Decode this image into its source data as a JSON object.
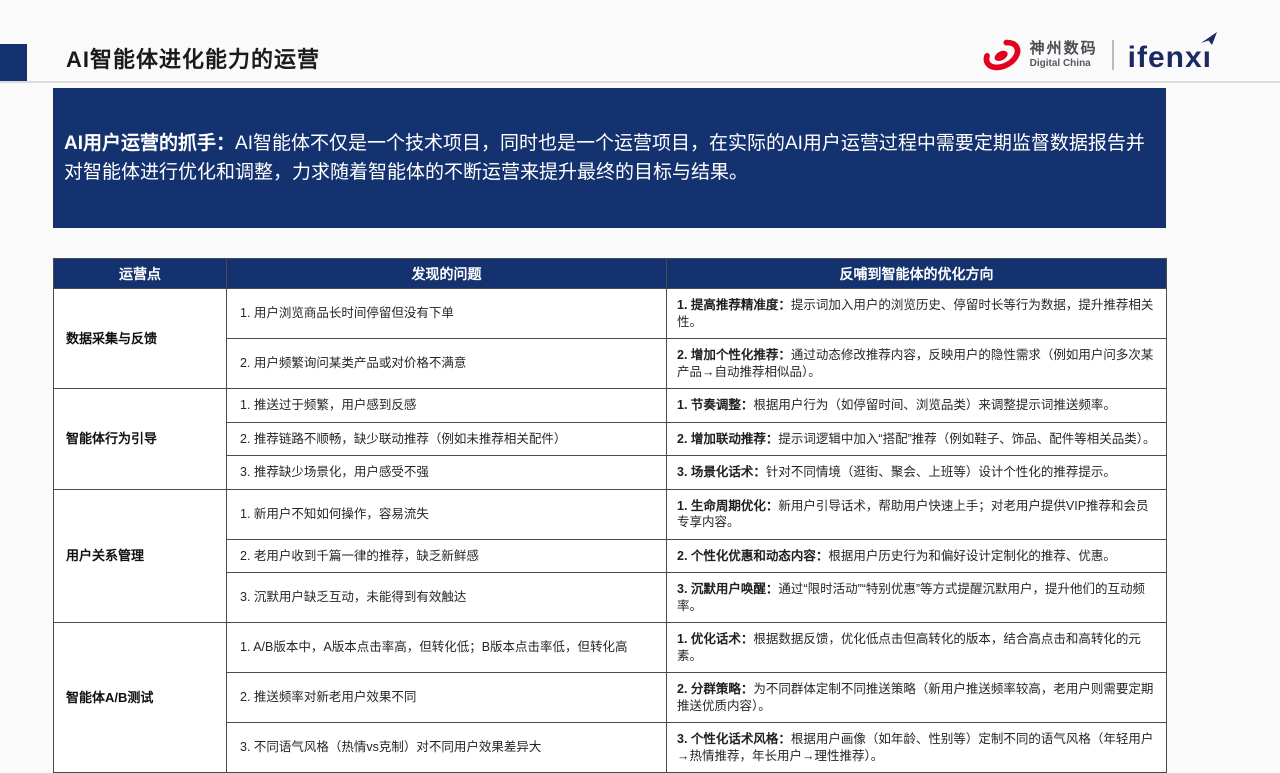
{
  "colors": {
    "navy": "#14326F",
    "logo_red": "#E2001A",
    "ifenxi_navy": "#1B2A63",
    "rule_gray": "#DCDCDC",
    "table_border": "#4A4A4A",
    "page_bg": "#FAFAFA"
  },
  "header": {
    "title": "AI智能体进化能力的运营",
    "logo": {
      "digital_china_cn": "神州数码",
      "digital_china_en": "Digital China",
      "ifenxi": "ifenxı"
    }
  },
  "banner": {
    "lead": "AI用户运营的抓手：",
    "body": "AI智能体不仅是一个技术项目，同时也是一个运营项目，在实际的AI用户运营过程中需要定期监督数据报告并对智能体进行优化和调整，力求随着智能体的不断运营来提升最终的目标与结果。"
  },
  "table": {
    "headers": [
      "运营点",
      "发现的问题",
      "反哺到智能体的优化方向"
    ],
    "groups": [
      {
        "category": "数据采集与反馈",
        "rows": [
          {
            "problem": "1. 用户浏览商品长时间停留但没有下单",
            "opt_lead": "1. 提高推荐精准度：",
            "opt_rest": "提示词加入用户的浏览历史、停留时长等行为数据，提升推荐相关性。"
          },
          {
            "problem": "2. 用户频繁询问某类产品或对价格不满意",
            "opt_lead": "2. 增加个性化推荐：",
            "opt_rest": "通过动态修改推荐内容，反映用户的隐性需求（例如用户问多次某产品→自动推荐相似品）。"
          }
        ]
      },
      {
        "category": "智能体行为引导",
        "rows": [
          {
            "problem": "1. 推送过于频繁，用户感到反感",
            "opt_lead": "1. 节奏调整：",
            "opt_rest": "根据用户行为（如停留时间、浏览品类）来调整提示词推送频率。"
          },
          {
            "problem": "2. 推荐链路不顺畅，缺少联动推荐（例如未推荐相关配件）",
            "opt_lead": "2. 增加联动推荐：",
            "opt_rest": "提示词逻辑中加入“搭配”推荐（例如鞋子、饰品、配件等相关品类）。"
          },
          {
            "problem": "3. 推荐缺少场景化，用户感受不强",
            "opt_lead": "3. 场景化话术：",
            "opt_rest": "针对不同情境（逛街、聚会、上班等）设计个性化的推荐提示。"
          }
        ]
      },
      {
        "category": "用户关系管理",
        "rows": [
          {
            "problem": "1. 新用户不知如何操作，容易流失",
            "opt_lead": "1. 生命周期优化：",
            "opt_rest": "新用户引导话术，帮助用户快速上手；对老用户提供VIP推荐和会员专享内容。"
          },
          {
            "problem": "2. 老用户收到千篇一律的推荐，缺乏新鲜感",
            "opt_lead": "2. 个性化优惠和动态内容：",
            "opt_rest": "根据用户历史行为和偏好设计定制化的推荐、优惠。"
          },
          {
            "problem": "3. 沉默用户缺乏互动，未能得到有效触达",
            "opt_lead": "3. 沉默用户唤醒：",
            "opt_rest": "通过“限时活动”“特别优惠”等方式提醒沉默用户，提升他们的互动频率。"
          }
        ]
      },
      {
        "category": "智能体A/B测试",
        "rows": [
          {
            "problem": "1. A/B版本中，A版本点击率高，但转化低；B版本点击率低，但转化高",
            "opt_lead": "1. 优化话术：",
            "opt_rest": "根据数据反馈，优化低点击但高转化的版本，结合高点击和高转化的元素。"
          },
          {
            "problem": "2. 推送频率对新老用户效果不同",
            "opt_lead": "2. 分群策略：",
            "opt_rest": "为不同群体定制不同推送策略（新用户推送频率较高，老用户则需要定期推送优质内容）。"
          },
          {
            "problem": "3. 不同语气风格（热情vs克制）对不同用户效果差异大",
            "opt_lead": "3. 个性化话术风格：",
            "opt_rest": "根据用户画像（如年龄、性别等）定制不同的语气风格（年轻用户→热情推荐，年长用户→理性推荐）。"
          }
        ]
      }
    ]
  }
}
